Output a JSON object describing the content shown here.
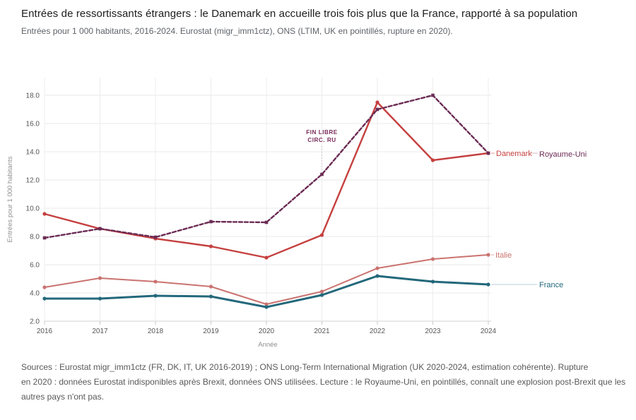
{
  "chart_data": {
    "type": "line",
    "title": "Entrées de ressortissants étrangers : le Danemark en accueille trois fois plus que la France, rapporté à sa population",
    "subtitle": "Entrées pour 1 000 habitants, 2016-2024. Eurostat (migr_imm1ctz), ONS (LTIM, UK en pointillés, rupture en 2020).",
    "xlabel": "Année",
    "ylabel": "Entrées pour 1 000 habitants",
    "x": [
      2016,
      2017,
      2018,
      2019,
      2020,
      2021,
      2022,
      2023,
      2024
    ],
    "ylim": [
      2,
      18
    ],
    "ytick_step": 2,
    "grid": true,
    "legend_position": "end-of-line-labels",
    "series": [
      {
        "name": "Danemark",
        "color": "#c5403f",
        "dash": false,
        "width": 2.4,
        "marker": "circle",
        "values": [
          9.6,
          8.55,
          7.85,
          7.3,
          6.5,
          8.1,
          17.5,
          13.4,
          13.9
        ]
      },
      {
        "name": "Royaume-Uni",
        "color": "#6b2b54",
        "dash": true,
        "width": 2.4,
        "marker": "square",
        "values": [
          7.9,
          8.55,
          7.95,
          9.05,
          9.0,
          12.4,
          17.0,
          18.0,
          13.9
        ]
      },
      {
        "name": "Italie",
        "color": "#ca7370",
        "dash": false,
        "width": 2.0,
        "marker": "circle",
        "values": [
          4.4,
          5.05,
          4.8,
          4.45,
          3.2,
          4.1,
          5.75,
          6.4,
          6.7
        ]
      },
      {
        "name": "France",
        "color": "#23687b",
        "dash": false,
        "width": 3.0,
        "marker": "circle",
        "values": [
          3.6,
          3.6,
          3.8,
          3.75,
          3.0,
          3.85,
          5.2,
          4.8,
          4.6
        ]
      }
    ],
    "annotation": {
      "lines": [
        "FIN LIBRE",
        "CIRC. RU"
      ],
      "x": 2021,
      "series": "Royaume-Uni",
      "color": "#7b2d5a"
    }
  },
  "footer": {
    "lines": [
      "Sources : Eurostat migr_imm1ctz (FR, DK, IT, UK 2016-2019) ; ONS Long-Term International Migration (UK 2020-2024, estimation cohérente). Rupture",
      "en 2020 : données Eurostat indisponibles après Brexit, données ONS utilisées. Lecture : le Royaume-Uni, en pointillés, connaît une explosion post-Brexit que les",
      "autres pays n'ont pas."
    ]
  }
}
